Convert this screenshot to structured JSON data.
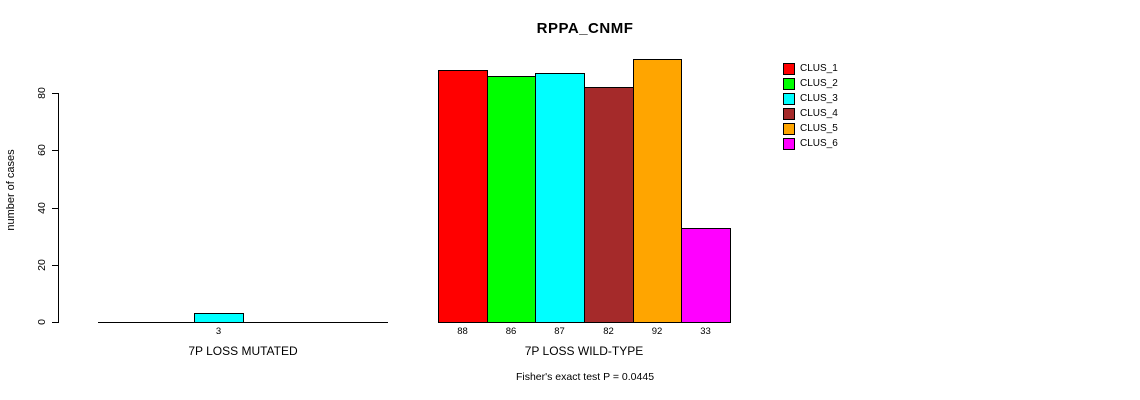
{
  "chart_data": {
    "type": "bar",
    "title": "RPPA_CNMF",
    "ylabel": "number of cases",
    "xlabel": "",
    "footnote": "Fisher's exact test P = 0.0445",
    "yticks": [
      0,
      20,
      40,
      60,
      80
    ],
    "ylim": [
      0,
      92
    ],
    "grid": false,
    "legend_position": "right",
    "value_label_rule": "nonzero-only",
    "categories": [
      "7P LOSS MUTATED",
      "7P LOSS WILD-TYPE"
    ],
    "series": [
      {
        "name": "CLUS_1",
        "color": "#FF0000",
        "values": [
          0,
          88
        ]
      },
      {
        "name": "CLUS_2",
        "color": "#00FF00",
        "values": [
          0,
          86
        ]
      },
      {
        "name": "CLUS_3",
        "color": "#00FFFF",
        "values": [
          3,
          87
        ]
      },
      {
        "name": "CLUS_4",
        "color": "#A52A2A",
        "values": [
          0,
          82
        ]
      },
      {
        "name": "CLUS_5",
        "color": "#FFA500",
        "values": [
          0,
          92
        ]
      },
      {
        "name": "CLUS_6",
        "color": "#FF00FF",
        "values": [
          0,
          33
        ]
      }
    ]
  }
}
